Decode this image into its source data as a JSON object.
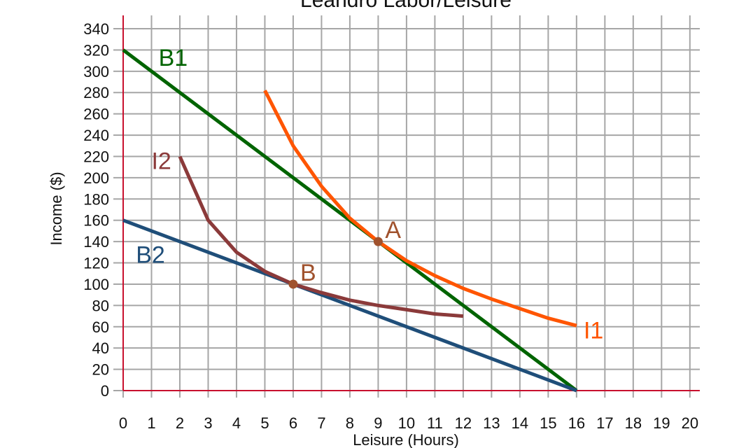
{
  "chart_data": {
    "type": "line",
    "title": "Leandro Labor/Leisure",
    "xlabel": "Leisure (Hours)",
    "ylabel": "Income ($)",
    "xlim": [
      0,
      20
    ],
    "ylim": [
      0,
      340
    ],
    "x_ticks": [
      "0",
      "1",
      "2",
      "3",
      "4",
      "5",
      "6",
      "7",
      "8",
      "9",
      "10",
      "11",
      "12",
      "13",
      "14",
      "15",
      "16",
      "17",
      "18",
      "19",
      "20"
    ],
    "y_ticks": [
      "0",
      "20",
      "40",
      "60",
      "80",
      "100",
      "120",
      "140",
      "160",
      "180",
      "200",
      "220",
      "240",
      "260",
      "280",
      "300",
      "320",
      "340"
    ],
    "grid": true,
    "series": [
      {
        "name": "B1",
        "color": "#006400",
        "x": [
          0,
          16
        ],
        "y": [
          320,
          0
        ]
      },
      {
        "name": "B2",
        "color": "#1f4e79",
        "x": [
          0,
          16
        ],
        "y": [
          160,
          0
        ]
      },
      {
        "name": "I1",
        "color": "#ff5500",
        "x": [
          5,
          6,
          7,
          8,
          9,
          10,
          11,
          12,
          13,
          14,
          15,
          16
        ],
        "y": [
          282,
          230,
          192,
          162,
          140,
          122,
          108,
          96,
          86,
          77,
          68,
          61
        ]
      },
      {
        "name": "I2",
        "color": "#8b3a3a",
        "x": [
          2,
          3,
          4,
          5,
          6,
          7,
          8,
          9,
          10,
          11,
          12
        ],
        "y": [
          220,
          160,
          130,
          112,
          100,
          92,
          85,
          80,
          76,
          72,
          70
        ]
      }
    ],
    "points": [
      {
        "label": "A",
        "x": 9,
        "y": 140,
        "color": "#a0522d"
      },
      {
        "label": "B",
        "x": 6,
        "y": 100,
        "color": "#a0522d"
      }
    ]
  }
}
